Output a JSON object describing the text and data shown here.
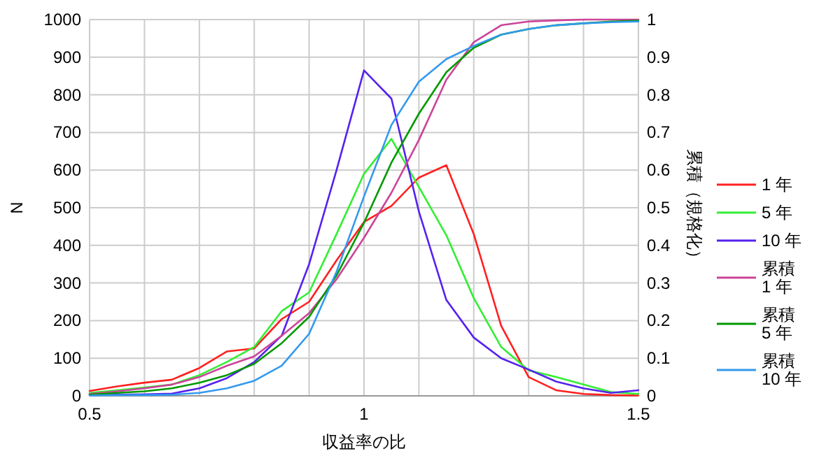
{
  "chart_data": {
    "type": "line",
    "xlabel": "収益率の比",
    "ylabel": "N",
    "y2label": "累積（規格化）",
    "x": [
      0.5,
      0.55,
      0.6,
      0.65,
      0.7,
      0.75,
      0.8,
      0.85,
      0.9,
      0.95,
      1.0,
      1.05,
      1.1,
      1.15,
      1.2,
      1.25,
      1.3,
      1.35,
      1.4,
      1.45,
      1.5
    ],
    "series": [
      {
        "name": "1 年",
        "color": "#ff2020",
        "values": [
          13,
          25,
          35,
          43,
          74,
          118,
          126,
          204,
          250,
          360,
          462,
          505,
          580,
          613,
          430,
          186,
          50,
          15,
          5,
          2,
          1
        ]
      },
      {
        "name": "5 年",
        "color": "#33ee33",
        "values": [
          8,
          15,
          22,
          30,
          55,
          90,
          130,
          225,
          275,
          430,
          590,
          683,
          555,
          427,
          260,
          130,
          68,
          50,
          30,
          10,
          5
        ]
      },
      {
        "name": "10 年",
        "color": "#5522ee",
        "values": [
          2,
          3,
          4,
          6,
          20,
          47,
          90,
          160,
          350,
          600,
          865,
          790,
          490,
          255,
          155,
          100,
          70,
          38,
          20,
          8,
          15
        ]
      },
      {
        "name": "累積 1 年",
        "color": "#cc4499",
        "axis": "y2",
        "values": [
          0.005,
          0.012,
          0.02,
          0.03,
          0.05,
          0.08,
          0.105,
          0.16,
          0.22,
          0.31,
          0.42,
          0.54,
          0.68,
          0.84,
          0.94,
          0.985,
          0.995,
          0.998,
          1,
          1,
          1
        ]
      },
      {
        "name": "累積 5 年",
        "color": "#009900",
        "axis": "y2",
        "values": [
          0.003,
          0.008,
          0.012,
          0.02,
          0.035,
          0.055,
          0.085,
          0.14,
          0.21,
          0.32,
          0.46,
          0.62,
          0.75,
          0.86,
          0.925,
          0.96,
          0.975,
          0.985,
          0.99,
          0.995,
          0.997
        ]
      },
      {
        "name": "累積 10 年",
        "color": "#3399ee",
        "axis": "y2",
        "values": [
          0.001,
          0.002,
          0.002,
          0.003,
          0.008,
          0.02,
          0.04,
          0.08,
          0.165,
          0.33,
          0.53,
          0.72,
          0.835,
          0.895,
          0.93,
          0.96,
          0.975,
          0.985,
          0.99,
          0.993,
          0.995
        ]
      }
    ],
    "xlim": [
      0.5,
      1.5
    ],
    "xticks": [
      0.5,
      {
        "value": 0.6,
        "label": null
      },
      {
        "value": 0.7,
        "label": null
      },
      {
        "value": 0.8,
        "label": null
      },
      {
        "value": 0.9,
        "label": null
      },
      1,
      {
        "value": 1.1,
        "label": null
      },
      {
        "value": 1.2,
        "label": null
      },
      {
        "value": 1.3,
        "label": null
      },
      {
        "value": 1.4,
        "label": null
      },
      1.5
    ],
    "ylim": [
      0,
      1000
    ],
    "yticks": [
      0,
      100,
      200,
      300,
      400,
      500,
      600,
      700,
      800,
      900,
      1000
    ],
    "y2lim": [
      0,
      1
    ],
    "y2ticks": [
      0,
      0.1,
      0.2,
      0.3,
      0.4,
      0.5,
      0.6,
      0.7,
      0.8,
      0.9,
      1
    ],
    "grid": true,
    "legend": "right",
    "marker": "none",
    "line_style": "solid"
  }
}
